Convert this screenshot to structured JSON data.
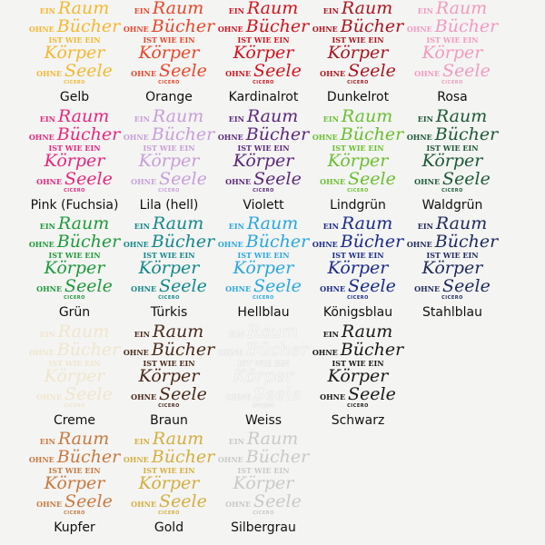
{
  "quote": {
    "l1": "EIN",
    "l2": "Raum",
    "l3": "OHNE",
    "l4": "Bücher",
    "l5": "IST WIE EIN",
    "l6": "Körper",
    "l7": "OHNE",
    "l8": "Seele",
    "author": "CICERO"
  },
  "swatches": [
    {
      "name": "Gelb",
      "color": "#f5b82e"
    },
    {
      "name": "Orange",
      "color": "#e8472b"
    },
    {
      "name": "Kardinalrot",
      "color": "#cf141e"
    },
    {
      "name": "Dunkelrot",
      "color": "#a8161f"
    },
    {
      "name": "Rosa",
      "color": "#f29bbf"
    },
    {
      "name": "Pink (Fuchsia)",
      "color": "#e5287d"
    },
    {
      "name": "Lila (hell)",
      "color": "#c79fd6"
    },
    {
      "name": "Violett",
      "color": "#5b2a7b"
    },
    {
      "name": "Lindgrün",
      "color": "#6abf2f"
    },
    {
      "name": "Waldgrün",
      "color": "#1e5a37"
    },
    {
      "name": "Grün",
      "color": "#1e9a3b"
    },
    {
      "name": "Türkis",
      "color": "#13898a"
    },
    {
      "name": "Hellblau",
      "color": "#2aa7e0"
    },
    {
      "name": "Königsblau",
      "color": "#1b2b8a"
    },
    {
      "name": "Stahlblau",
      "color": "#1f2a5b"
    },
    {
      "name": "Creme",
      "color": "#efe6cc"
    },
    {
      "name": "Braun",
      "color": "#4a2b1b"
    },
    {
      "name": "Weiss",
      "color": "#f7f7f7"
    },
    {
      "name": "Schwarz",
      "color": "#1a1a1a"
    },
    {
      "name": "",
      "color": ""
    },
    {
      "name": "Kupfer",
      "color": "#c87a40"
    },
    {
      "name": "Gold",
      "color": "#d3af3e"
    },
    {
      "name": "Silbergrau",
      "color": "#c9c9c9"
    }
  ]
}
